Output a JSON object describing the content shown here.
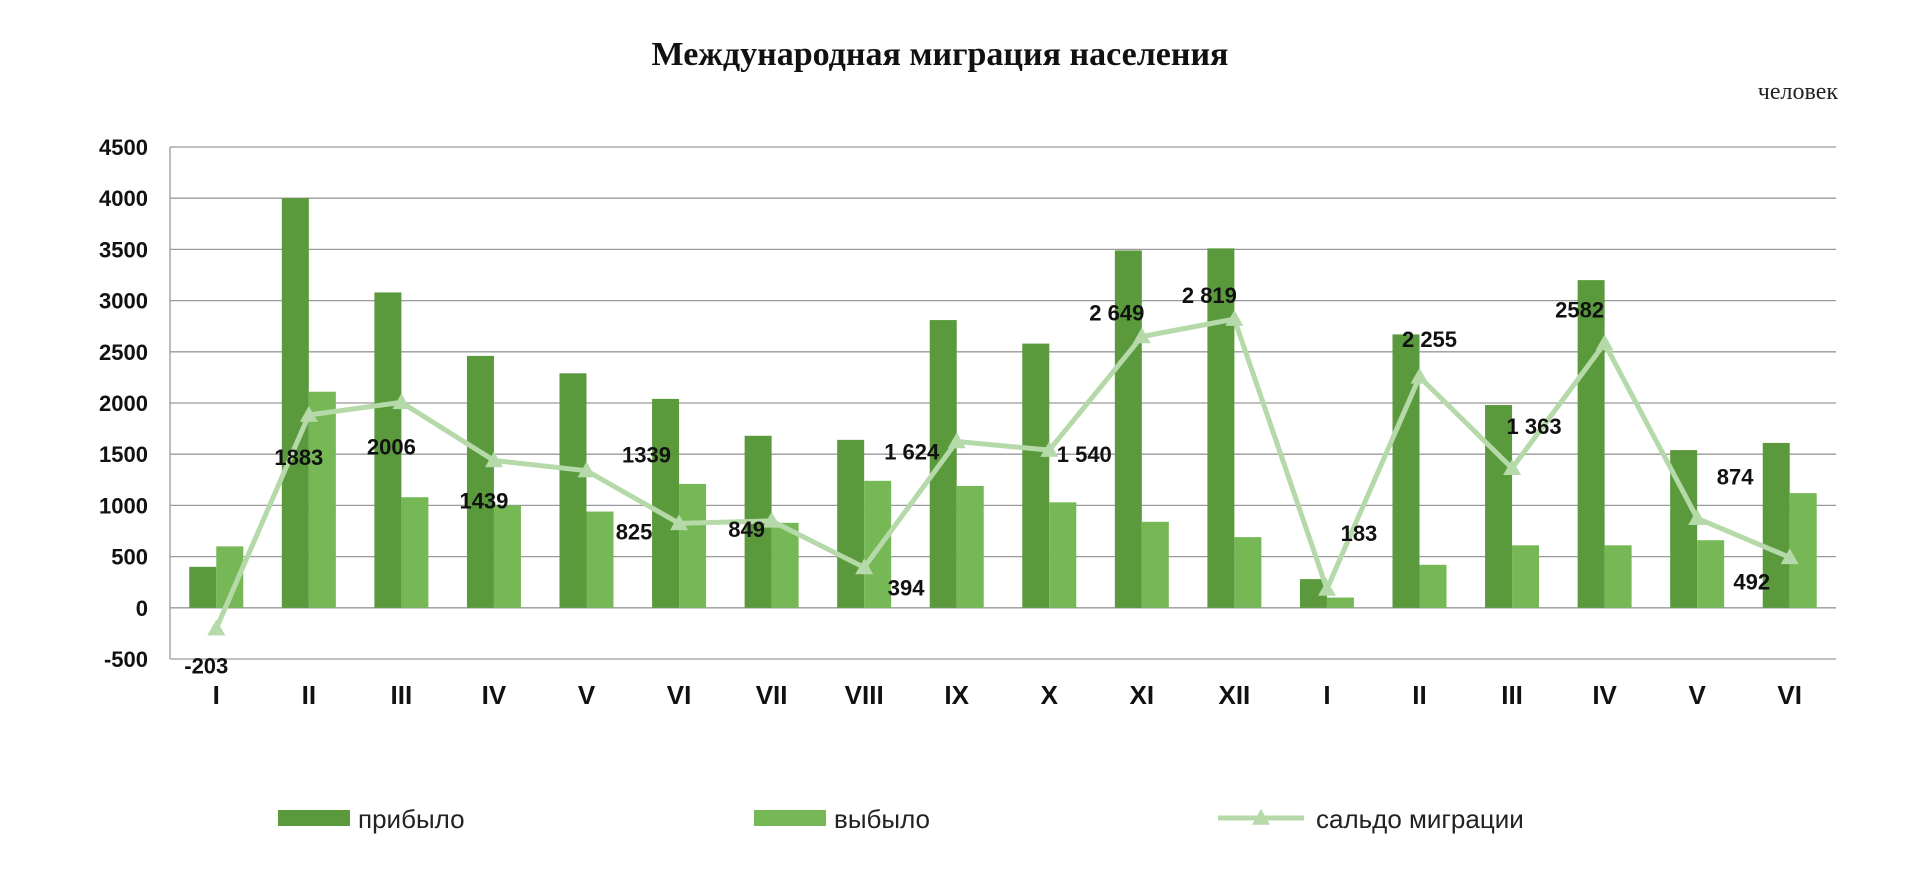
{
  "chart_data": {
    "type": "bar",
    "title": "Международная миграция населения",
    "unit": "человек",
    "categories": [
      "I",
      "II",
      "III",
      "IV",
      "V",
      "VI",
      "VII",
      "VIII",
      "IX",
      "X",
      "XI",
      "XII",
      "I",
      "II",
      "III",
      "IV",
      "V",
      "VI"
    ],
    "ylim": [
      -500,
      4500
    ],
    "yticks": [
      -500,
      0,
      500,
      1000,
      1500,
      2000,
      2500,
      3000,
      3500,
      4000,
      4500
    ],
    "grid": true,
    "legend_position": "bottom",
    "series": [
      {
        "name": "прибыло",
        "type": "bar",
        "color": "#5a9a3c",
        "values": [
          400,
          4000,
          3080,
          2460,
          2290,
          2040,
          1680,
          1640,
          2810,
          2580,
          3490,
          3510,
          280,
          2670,
          1980,
          3200,
          1540,
          1610
        ]
      },
      {
        "name": "выбыло",
        "type": "bar",
        "color": "#76b855",
        "values": [
          600,
          2110,
          1080,
          1000,
          940,
          1210,
          830,
          1240,
          1190,
          1030,
          840,
          690,
          100,
          420,
          610,
          610,
          660,
          1120
        ]
      },
      {
        "name": "сальдо миграции",
        "type": "line",
        "color": "#b5d9a8",
        "marker": "triangle",
        "values": [
          -203,
          1883,
          2006,
          1439,
          1339,
          825,
          849,
          394,
          1624,
          1540,
          2649,
          2819,
          183,
          2255,
          1363,
          2582,
          874,
          492
        ],
        "labels": [
          "-203",
          "1883",
          "2006",
          "1439",
          "1339",
          "825",
          "849",
          "394",
          "1 624",
          "1 540",
          "2 649",
          "2 819",
          "183",
          "2 255",
          "1 363",
          "2582",
          "874",
          "492"
        ]
      }
    ]
  }
}
